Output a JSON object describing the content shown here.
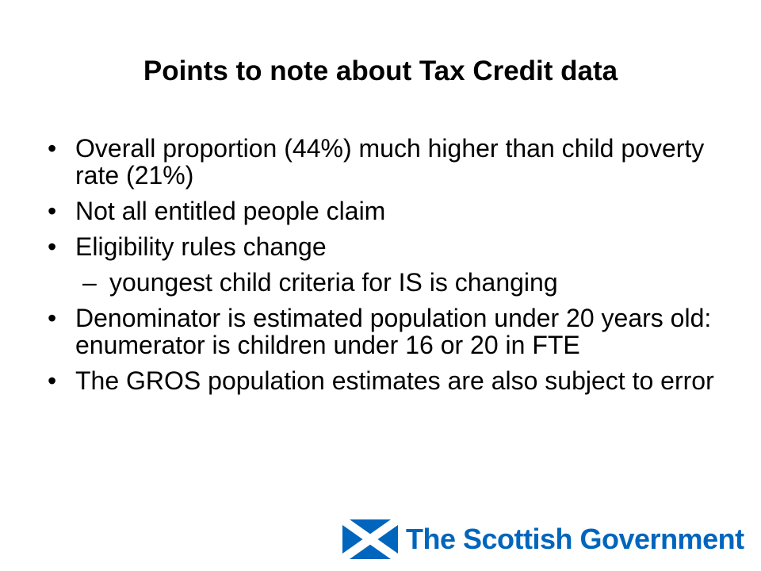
{
  "slide": {
    "title": "Points to note about Tax Credit data",
    "bullets": [
      {
        "mark": "•",
        "text": "Overall proportion (44%) much higher than child poverty rate (21%)"
      },
      {
        "mark": "•",
        "text": "Not all entitled people claim"
      },
      {
        "mark": "•",
        "text": "Eligibility rules change"
      },
      {
        "mark": "–",
        "text": "youngest child criteria for IS is changing"
      },
      {
        "mark": "•",
        "text": "Denominator is estimated population under 20 years old: enumerator is children under 16 or 20 in FTE"
      },
      {
        "mark": "•",
        "text": "The GROS population estimates are also subject to error"
      }
    ]
  },
  "logo": {
    "text": "The Scottish Government",
    "icon": "saltire-flag-icon",
    "brand_color": "#0065bd",
    "cross_color": "#ffffff"
  }
}
